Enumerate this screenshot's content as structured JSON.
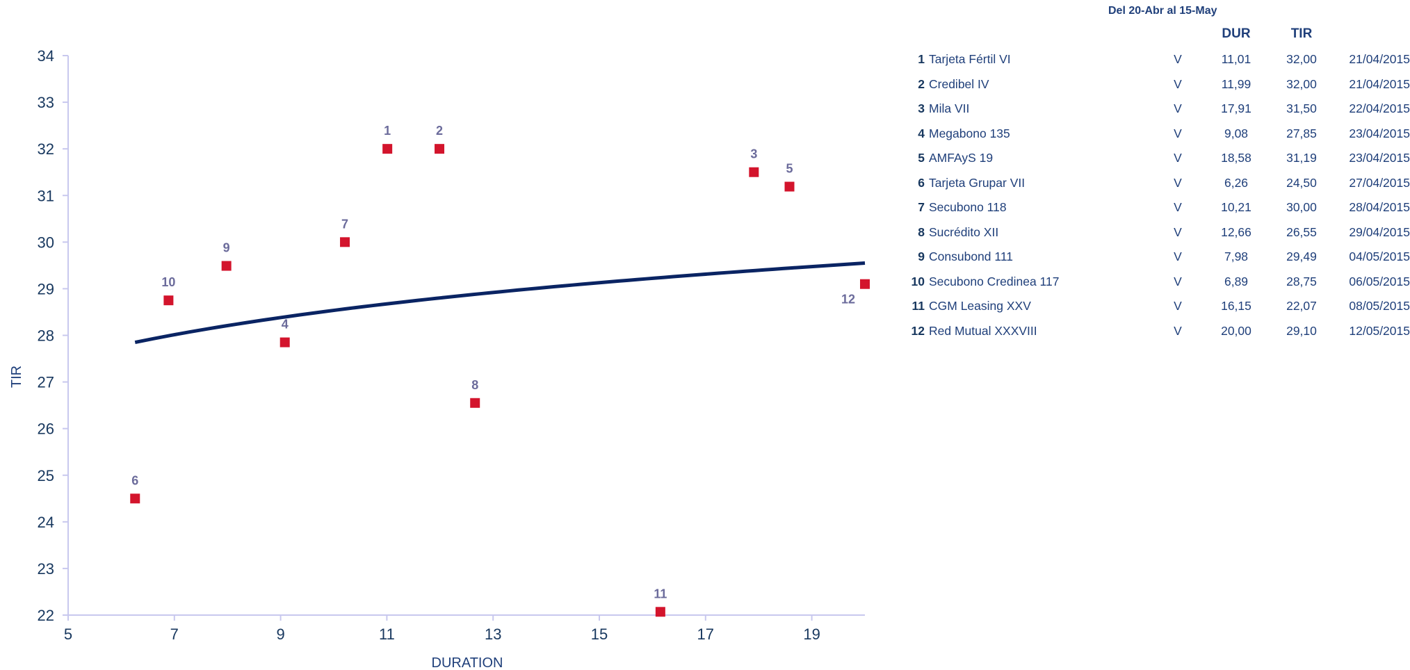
{
  "chart_data": {
    "type": "scatter",
    "xlabel": "DURATION",
    "ylabel": "TIR",
    "xlim": [
      5,
      20
    ],
    "ylim": [
      22,
      34
    ],
    "x_ticks": [
      "5",
      "7",
      "9",
      "11",
      "13",
      "15",
      "17",
      "19"
    ],
    "y_ticks": [
      "22",
      "23",
      "24",
      "25",
      "26",
      "27",
      "28",
      "29",
      "30",
      "31",
      "32",
      "33",
      "34"
    ],
    "grid": false,
    "marker_color": "#d3142c",
    "trend_color": "#0a2463",
    "point_label_color": "#6b6b9b",
    "points": [
      {
        "label": "1",
        "x": 11.01,
        "y": 32.0
      },
      {
        "label": "2",
        "x": 11.99,
        "y": 32.0
      },
      {
        "label": "3",
        "x": 17.91,
        "y": 31.5
      },
      {
        "label": "4",
        "x": 9.08,
        "y": 27.85
      },
      {
        "label": "5",
        "x": 18.58,
        "y": 31.19
      },
      {
        "label": "6",
        "x": 6.26,
        "y": 24.5
      },
      {
        "label": "7",
        "x": 10.21,
        "y": 30.0
      },
      {
        "label": "8",
        "x": 12.66,
        "y": 26.55
      },
      {
        "label": "9",
        "x": 7.98,
        "y": 29.49
      },
      {
        "label": "10",
        "x": 6.89,
        "y": 28.75
      },
      {
        "label": "11",
        "x": 16.15,
        "y": 22.07
      },
      {
        "label": "12",
        "x": 20.0,
        "y": 29.1
      }
    ],
    "trendline": {
      "type": "logarithmic",
      "x_start": 6.26,
      "y_start": 27.85,
      "x_end": 20.0,
      "y_end": 29.55
    }
  },
  "table": {
    "period": "Del 20-Abr al 15-May",
    "headers": {
      "dur": "DUR",
      "tir": "TIR"
    },
    "rows": [
      {
        "num": "1",
        "name": "Tarjeta Fértil VI",
        "type": "V",
        "dur": "11,01",
        "tir": "32,00",
        "date": "21/04/2015"
      },
      {
        "num": "2",
        "name": "Credibel IV",
        "type": "V",
        "dur": "11,99",
        "tir": "32,00",
        "date": "21/04/2015"
      },
      {
        "num": "3",
        "name": "Mila VII",
        "type": "V",
        "dur": "17,91",
        "tir": "31,50",
        "date": "22/04/2015"
      },
      {
        "num": "4",
        "name": "Megabono 135",
        "type": "V",
        "dur": "9,08",
        "tir": "27,85",
        "date": "23/04/2015"
      },
      {
        "num": "5",
        "name": "AMFAyS 19",
        "type": "V",
        "dur": "18,58",
        "tir": "31,19",
        "date": "23/04/2015"
      },
      {
        "num": "6",
        "name": "Tarjeta Grupar VII",
        "type": "V",
        "dur": "6,26",
        "tir": "24,50",
        "date": "27/04/2015"
      },
      {
        "num": "7",
        "name": "Secubono 118",
        "type": "V",
        "dur": "10,21",
        "tir": "30,00",
        "date": "28/04/2015"
      },
      {
        "num": "8",
        "name": "Sucrédito XII",
        "type": "V",
        "dur": "12,66",
        "tir": "26,55",
        "date": "29/04/2015"
      },
      {
        "num": "9",
        "name": "Consubond 111",
        "type": "V",
        "dur": "7,98",
        "tir": "29,49",
        "date": "04/05/2015"
      },
      {
        "num": "10",
        "name": "Secubono Credinea 117",
        "type": "V",
        "dur": "6,89",
        "tir": "28,75",
        "date": "06/05/2015"
      },
      {
        "num": "11",
        "name": "CGM Leasing XXV",
        "type": "V",
        "dur": "16,15",
        "tir": "22,07",
        "date": "08/05/2015"
      },
      {
        "num": "12",
        "name": "Red Mutual XXXVIII",
        "type": "V",
        "dur": "20,00",
        "tir": "29,10",
        "date": "12/05/2015"
      }
    ]
  }
}
